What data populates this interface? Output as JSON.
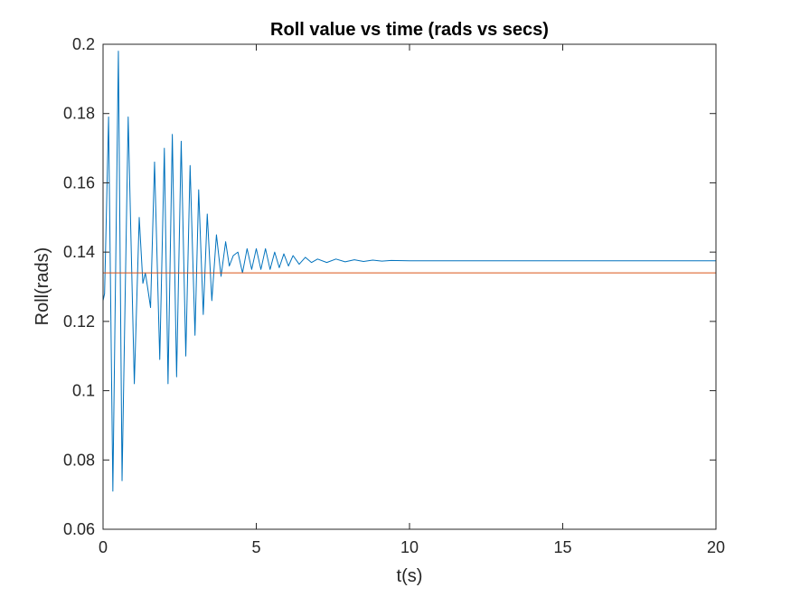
{
  "chart_data": {
    "type": "line",
    "title": "Roll value vs time (rads vs secs)",
    "xlabel": "t(s)",
    "ylabel": "Roll(rads)",
    "xlim": [
      0,
      20
    ],
    "ylim": [
      0.06,
      0.2
    ],
    "xticks": [
      0,
      5,
      10,
      15,
      20
    ],
    "xtick_labels": [
      "0",
      "5",
      "10",
      "15",
      "20"
    ],
    "yticks": [
      0.06,
      0.08,
      0.1,
      0.12,
      0.14,
      0.16,
      0.18,
      0.2
    ],
    "ytick_labels": [
      "0.06",
      "0.08",
      "0.1",
      "0.12",
      "0.14",
      "0.16",
      "0.18",
      "0.2"
    ],
    "grid": false,
    "legend": "none",
    "series": [
      {
        "color": "#0072BD",
        "x": [
          0,
          0.05,
          0.18,
          0.32,
          0.5,
          0.62,
          0.82,
          1.02,
          1.18,
          1.3,
          1.38,
          1.45,
          1.55,
          1.68,
          1.85,
          2.0,
          2.12,
          2.26,
          2.4,
          2.55,
          2.7,
          2.84,
          3.0,
          3.12,
          3.27,
          3.4,
          3.55,
          3.7,
          3.85,
          4.0,
          4.12,
          4.25,
          4.4,
          4.55,
          4.7,
          4.85,
          5.0,
          5.15,
          5.3,
          5.45,
          5.6,
          5.75,
          5.9,
          6.05,
          6.2,
          6.4,
          6.6,
          6.8,
          7.0,
          7.3,
          7.6,
          7.9,
          8.2,
          8.5,
          8.8,
          9.1,
          9.4,
          10.0,
          12.0,
          15.0,
          20.0
        ],
        "y": [
          0.126,
          0.128,
          0.179,
          0.071,
          0.198,
          0.074,
          0.179,
          0.102,
          0.15,
          0.131,
          0.134,
          0.13,
          0.124,
          0.166,
          0.109,
          0.17,
          0.102,
          0.174,
          0.104,
          0.172,
          0.11,
          0.165,
          0.116,
          0.158,
          0.122,
          0.151,
          0.126,
          0.145,
          0.133,
          0.143,
          0.136,
          0.139,
          0.14,
          0.134,
          0.141,
          0.135,
          0.141,
          0.135,
          0.141,
          0.135,
          0.14,
          0.1355,
          0.1395,
          0.136,
          0.139,
          0.1365,
          0.1385,
          0.137,
          0.138,
          0.137,
          0.138,
          0.1372,
          0.1378,
          0.1373,
          0.1377,
          0.1374,
          0.1376,
          0.1375,
          0.1375,
          0.1375,
          0.1375
        ]
      },
      {
        "color": "#D95319",
        "x": [
          0,
          20
        ],
        "y": [
          0.134,
          0.134
        ]
      }
    ]
  }
}
